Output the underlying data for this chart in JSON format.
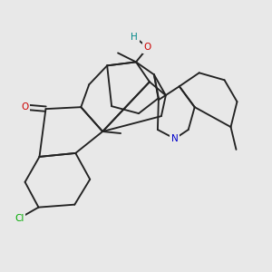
{
  "background_color": "#e8e8e8",
  "bond_color": "#222222",
  "N_color": "#0000cc",
  "O_color": "#cc0000",
  "H_color": "#008888",
  "Cl_color": "#00aa00",
  "lw": 1.35,
  "figsize": [
    3.0,
    3.0
  ],
  "dpi": 100,
  "xlim": [
    0.0,
    1.0
  ],
  "ylim": [
    0.0,
    1.0
  ]
}
